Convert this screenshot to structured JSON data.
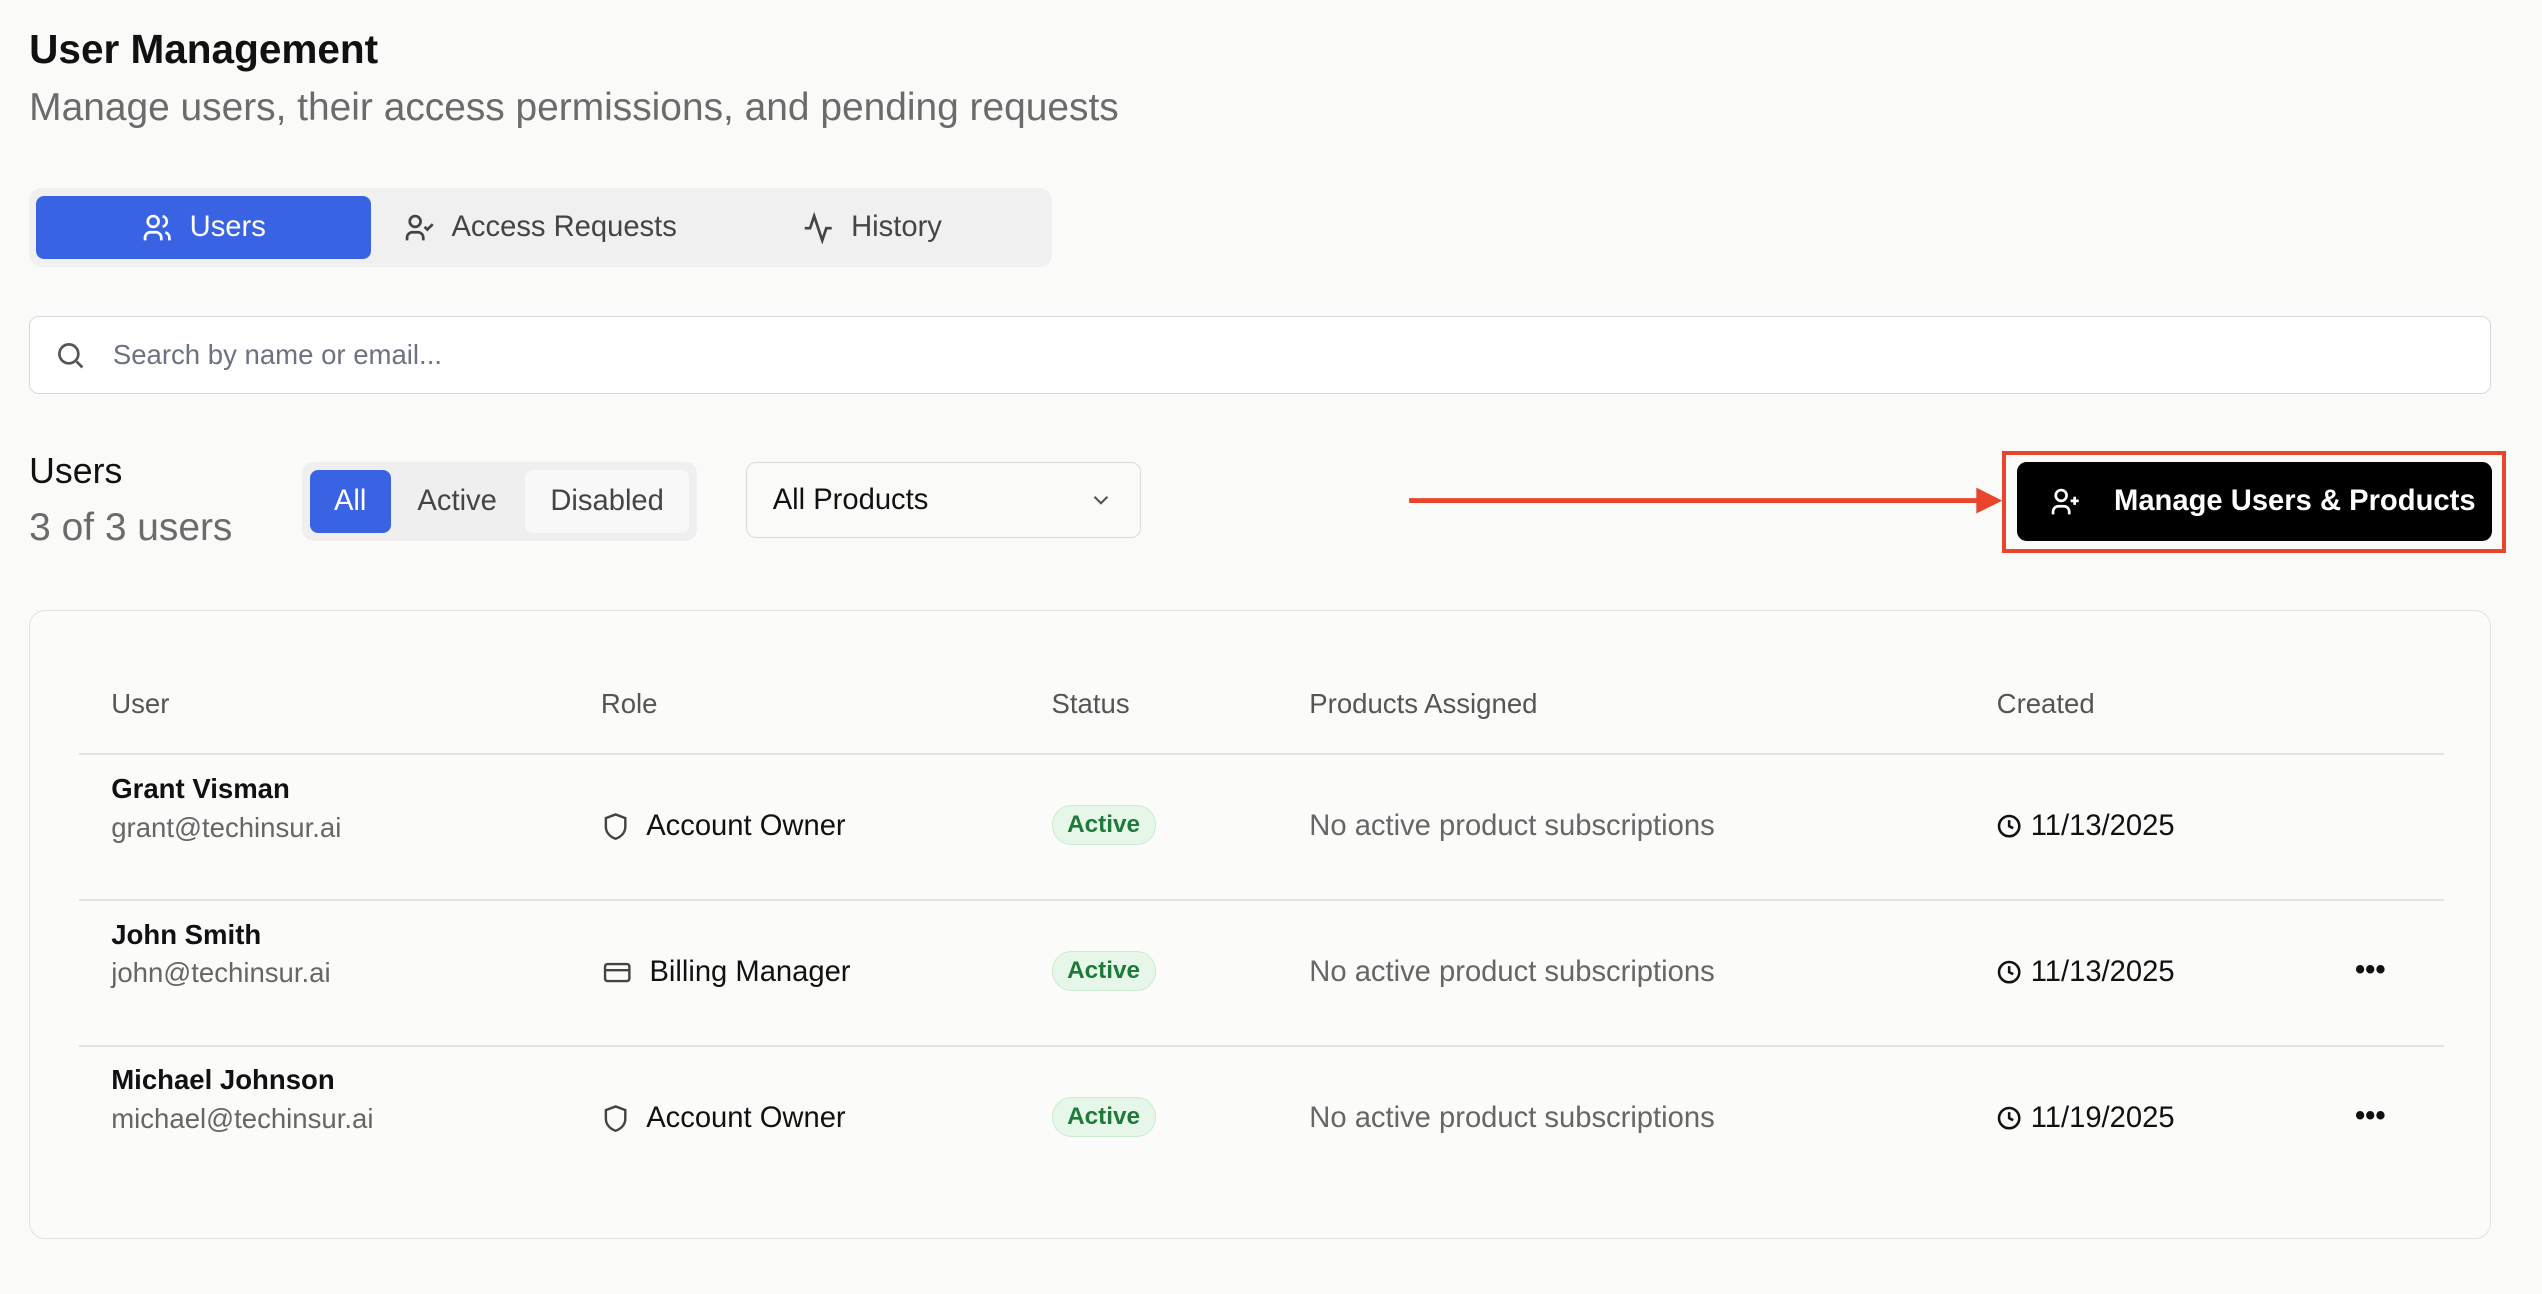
{
  "header": {
    "title": "User Management",
    "subtitle": "Manage users, their access permissions, and pending requests"
  },
  "tabs": [
    {
      "label": "Users",
      "icon": "users-icon",
      "active": true
    },
    {
      "label": "Access Requests",
      "icon": "user-check-icon"
    },
    {
      "label": "History",
      "icon": "activity-icon"
    }
  ],
  "search": {
    "placeholder": "Search by name or email...",
    "value": ""
  },
  "users_section": {
    "heading": "Users",
    "count": "3 of 3 users"
  },
  "status_filter": {
    "options": [
      "All",
      "Active",
      "Disabled"
    ],
    "selected": "All"
  },
  "product_filter": {
    "selected": "All Products"
  },
  "manage_button": {
    "label": "Manage Users & Products",
    "icon": "user-plus-icon"
  },
  "annotation": {
    "color": "#e8452c"
  },
  "colors": {
    "accent": "#3a63e3",
    "active_badge": "#1f7a3a"
  },
  "table": {
    "columns": [
      "User",
      "Role",
      "Status",
      "Products Assigned",
      "Created"
    ],
    "rows": [
      {
        "name": "Grant Visman",
        "email": "grant@techinsur.ai",
        "role": "Account Owner",
        "role_icon": "shield-icon",
        "status": "Active",
        "products": "No active product subscriptions",
        "created": "11/13/2025",
        "actions": false
      },
      {
        "name": "John Smith",
        "email": "john@techinsur.ai",
        "role": "Billing Manager",
        "role_icon": "credit-card-icon",
        "status": "Active",
        "products": "No active product subscriptions",
        "created": "11/13/2025",
        "actions": true
      },
      {
        "name": "Michael Johnson",
        "email": "michael@techinsur.ai",
        "role": "Account Owner",
        "role_icon": "shield-icon",
        "status": "Active",
        "products": "No active product subscriptions",
        "created": "11/19/2025",
        "actions": true
      }
    ]
  }
}
